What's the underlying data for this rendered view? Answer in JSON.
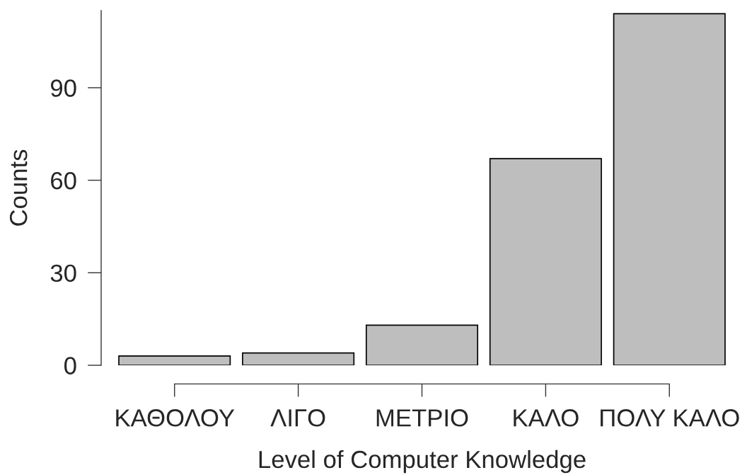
{
  "chart_data": {
    "type": "bar",
    "xlabel": "Level of Computer Knowledge",
    "ylabel": "Counts",
    "categories": [
      "ΚΑΘΟΛΟΥ",
      "ΛΙΓΟ",
      "ΜΕΤΡΙΟ",
      "ΚΑΛΟ",
      "ΠΟΛΥ ΚΑΛΟ"
    ],
    "values": [
      3,
      4,
      13,
      67,
      114
    ],
    "color": "#bebebe",
    "ylim": [
      0,
      115
    ],
    "yticks": [
      0,
      30,
      60,
      90
    ]
  }
}
